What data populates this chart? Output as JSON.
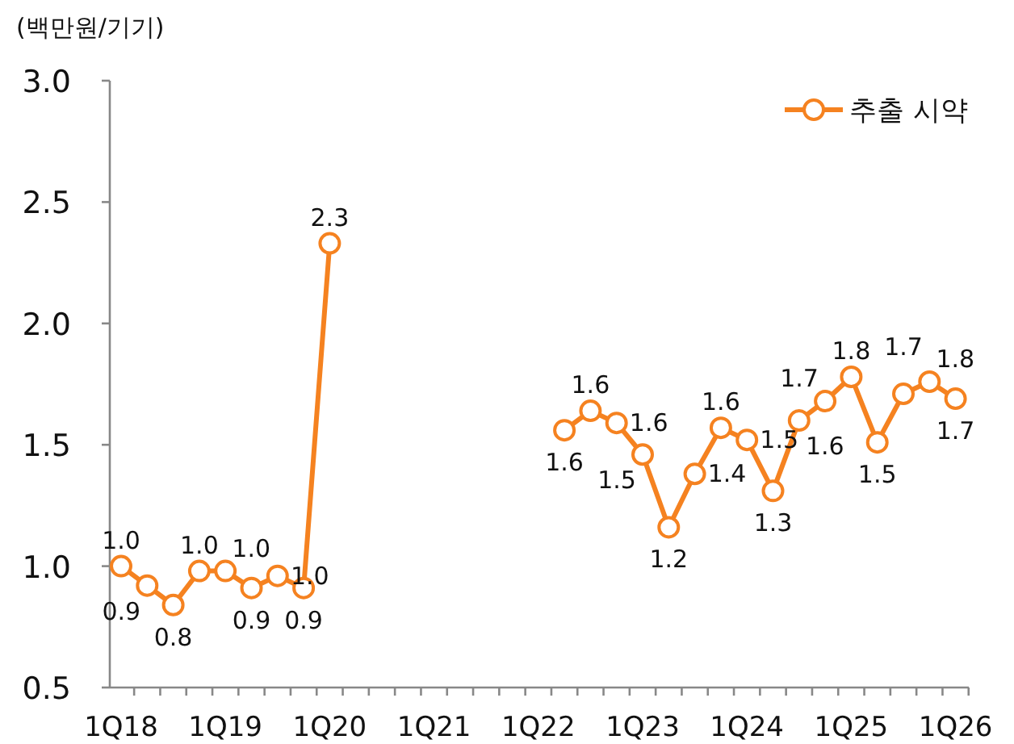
{
  "chart_data": {
    "type": "line",
    "ylabel": "(백만원/기기)",
    "categories": [
      "1Q18",
      null,
      null,
      null,
      "1Q19",
      null,
      null,
      null,
      "1Q20",
      null,
      null,
      null,
      "1Q21",
      null,
      null,
      null,
      "1Q22",
      null,
      null,
      null,
      "1Q23",
      null,
      null,
      null,
      "1Q24",
      null,
      null,
      null,
      "1Q25",
      null,
      null,
      null,
      "1Q26"
    ],
    "series": [
      {
        "name": "추출 시약",
        "color": "#f58220",
        "values": [
          1.0,
          0.92,
          0.84,
          0.98,
          0.98,
          0.91,
          0.96,
          0.91,
          2.33,
          null,
          null,
          null,
          null,
          null,
          null,
          null,
          null,
          1.56,
          1.64,
          1.59,
          1.46,
          1.16,
          1.38,
          1.57,
          1.52,
          1.31,
          1.6,
          1.68,
          1.78,
          1.51,
          1.71,
          1.76,
          1.69
        ],
        "value_labels": [
          "1.0",
          "0.9",
          "0.8",
          "1.0",
          "1.0",
          "0.9",
          "1.0",
          "0.9",
          "2.3",
          null,
          null,
          null,
          null,
          null,
          null,
          null,
          null,
          "1.6",
          "1.6",
          "1.6",
          "1.5",
          "1.2",
          "1.4",
          "1.6",
          "1.5",
          "1.3",
          "1.6",
          "1.7",
          "1.8",
          "1.5",
          "1.7",
          "1.8",
          "1.7"
        ]
      }
    ],
    "ylim": [
      0.5,
      3.0
    ],
    "yticks": [
      "0.5",
      {
        "value": 1.0,
        "label": "1.0"
      },
      {
        "value": 1.5,
        "label": "1.5"
      },
      {
        "value": 2.0,
        "label": "2.0"
      },
      {
        "value": 2.5,
        "label": "2.5"
      },
      {
        "value": 3.0,
        "label": "3.0"
      }
    ],
    "marker": "circle",
    "line_style": "solid",
    "legend": "top right",
    "grid": false
  }
}
